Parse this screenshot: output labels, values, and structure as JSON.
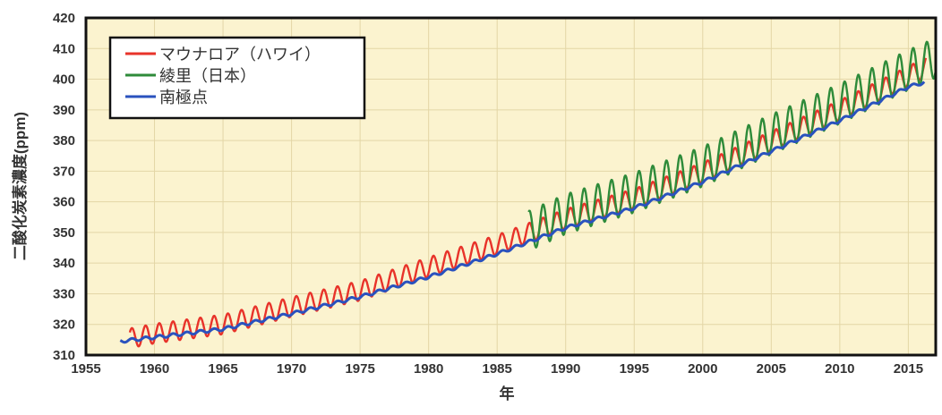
{
  "chart_data": {
    "type": "line",
    "title": "",
    "xlabel": "年",
    "ylabel": "二酸化炭素濃度(ppm)",
    "xlim": [
      1955,
      2017
    ],
    "ylim": [
      310,
      420
    ],
    "xticks": [
      1955,
      1960,
      1965,
      1970,
      1975,
      1980,
      1985,
      1990,
      1995,
      2000,
      2005,
      2010,
      2015
    ],
    "yticks": [
      310,
      320,
      330,
      340,
      350,
      360,
      370,
      380,
      390,
      400,
      410,
      420
    ],
    "grid": true,
    "legend_position": "top-left",
    "background": "#fbf3cf",
    "series": [
      {
        "name": "マウナロア（ハワイ）",
        "color": "#e8332a",
        "seasonal_amplitude_ppm": 3.2,
        "x": [
          1958.2,
          1960,
          1965,
          1970,
          1975,
          1980,
          1985,
          1990,
          1995,
          2000,
          2005,
          2010,
          2015,
          2016.3
        ],
        "values": [
          315.5,
          317,
          320,
          325.7,
          331,
          338.7,
          346,
          354.4,
          361,
          369.6,
          379.8,
          389.9,
          401,
          404
        ]
      },
      {
        "name": "綾里（日本）",
        "color": "#2e8b3a",
        "seasonal_amplitude_ppm": 6.5,
        "x": [
          1987.3,
          1990,
          1995,
          2000,
          2005,
          2010,
          2015,
          2017
        ],
        "values": [
          350.5,
          356,
          363,
          371.5,
          382,
          392,
          403,
          407
        ]
      },
      {
        "name": "南極点",
        "color": "#2a52be",
        "seasonal_amplitude_ppm": 0.5,
        "x": [
          1957.5,
          1960,
          1965,
          1970,
          1975,
          1980,
          1985,
          1990,
          1995,
          2000,
          2005,
          2010,
          2015,
          2016.2
        ],
        "values": [
          314.5,
          315.8,
          318.5,
          323.5,
          329,
          335.5,
          343,
          351.5,
          358,
          366.5,
          376.5,
          386.5,
          397.5,
          399
        ]
      }
    ]
  }
}
